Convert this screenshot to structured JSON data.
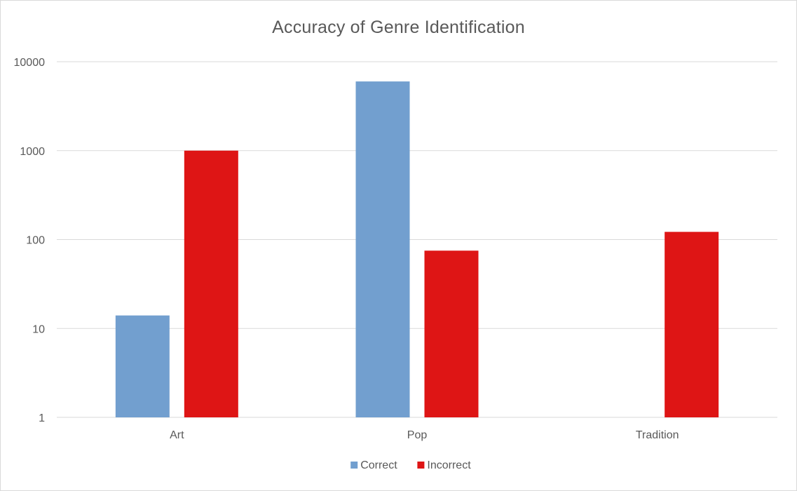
{
  "chart_data": {
    "type": "bar",
    "title": "Accuracy of Genre Identification",
    "xlabel": "",
    "ylabel": "",
    "yscale": "log",
    "ylim": [
      1,
      10000
    ],
    "yticks": [
      "1",
      "10",
      "100",
      "1000",
      "10000"
    ],
    "categories": [
      "Art",
      "Pop",
      "Tradition"
    ],
    "series": [
      {
        "name": "Correct",
        "color": "#729fcf",
        "values": [
          14,
          6000,
          null
        ]
      },
      {
        "name": "Incorrect",
        "color": "#de1515",
        "values": [
          1000,
          75,
          122
        ]
      }
    ],
    "grid": true,
    "legend": "bottom"
  }
}
